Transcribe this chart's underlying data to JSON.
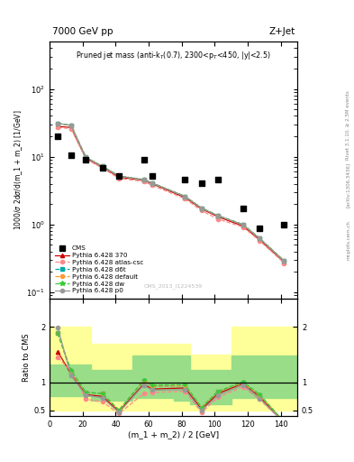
{
  "header_left": "7000 GeV pp",
  "header_right": "Z+Jet",
  "plot_title": "Pruned jet mass (anti-k_{T}(0.7), 2300<p_{T}<450, |y|<2.5)",
  "xlabel": "(m_1 + m_2) / 2 [GeV]",
  "ylabel_main": "1000/σ 2dσ/d(m_1 + m_2) [1/GeV]",
  "ylabel_ratio": "Ratio to CMS",
  "watermark": "CMS_2013_I1224539",
  "rivet_label": "Rivet 3.1.10, ≥ 2.5M events",
  "arxiv_label": "[arXiv:1306.3436]",
  "mcplots_label": "mcplots.cern.ch",
  "cms_x": [
    5,
    13,
    22,
    32,
    42,
    57,
    62,
    82,
    92,
    102,
    117,
    127,
    142
  ],
  "cms_y": [
    20,
    10.5,
    9.0,
    6.8,
    5.2,
    9.0,
    5.2,
    4.6,
    4.1,
    4.6,
    1.75,
    0.88,
    1.0
  ],
  "x_bins": [
    5,
    13,
    22,
    32,
    42,
    57,
    62,
    82,
    92,
    102,
    117,
    127,
    142
  ],
  "py370_y": [
    28,
    27,
    9.5,
    7.0,
    5.0,
    4.5,
    4.0,
    2.5,
    1.7,
    1.3,
    0.95,
    0.6,
    0.28
  ],
  "pyatl_y": [
    27,
    26,
    9.2,
    6.8,
    4.8,
    4.3,
    3.8,
    2.4,
    1.6,
    1.2,
    0.92,
    0.58,
    0.27
  ],
  "pyd6t_y": [
    31,
    29,
    9.8,
    7.2,
    5.2,
    4.6,
    4.1,
    2.6,
    1.75,
    1.35,
    1.0,
    0.63,
    0.29
  ],
  "pydef_y": [
    31,
    29,
    9.8,
    7.2,
    5.2,
    4.6,
    4.1,
    2.6,
    1.75,
    1.35,
    1.0,
    0.63,
    0.29
  ],
  "pydw_y": [
    31,
    29,
    9.8,
    7.2,
    5.2,
    4.6,
    4.1,
    2.6,
    1.75,
    1.35,
    1.0,
    0.63,
    0.29
  ],
  "pyp0_y": [
    31,
    29,
    9.8,
    7.2,
    5.2,
    4.6,
    4.1,
    2.6,
    1.75,
    1.35,
    1.0,
    0.63,
    0.29
  ],
  "ratio_x": [
    5,
    13,
    22,
    32,
    42,
    57,
    62,
    82,
    92,
    102,
    117,
    127,
    142
  ],
  "ratio_370": [
    1.55,
    1.15,
    0.78,
    0.75,
    0.48,
    0.97,
    0.88,
    0.9,
    0.52,
    0.8,
    0.98,
    0.75,
    0.27
  ],
  "ratio_atl": [
    1.45,
    1.2,
    0.7,
    0.65,
    0.44,
    0.8,
    0.82,
    0.84,
    0.46,
    0.73,
    0.92,
    0.7,
    0.27
  ],
  "ratio_d6t": [
    1.88,
    1.18,
    0.82,
    0.8,
    0.5,
    1.03,
    0.93,
    0.94,
    0.55,
    0.84,
    0.99,
    0.77,
    0.29
  ],
  "ratio_def": [
    1.88,
    1.18,
    0.82,
    0.8,
    0.5,
    1.03,
    0.93,
    0.94,
    0.55,
    0.84,
    0.99,
    0.77,
    0.29
  ],
  "ratio_dw": [
    1.88,
    1.22,
    0.82,
    0.8,
    0.5,
    1.04,
    0.95,
    0.96,
    0.55,
    0.84,
    1.01,
    0.79,
    0.29
  ],
  "ratio_p0": [
    1.98,
    1.12,
    0.77,
    0.72,
    0.46,
    0.95,
    0.86,
    0.87,
    0.49,
    0.77,
    0.95,
    0.71,
    0.28
  ],
  "band_x": [
    0,
    15,
    25,
    35,
    50,
    60,
    75,
    85,
    95,
    110,
    130,
    150
  ],
  "band_green_lo": [
    0.75,
    0.75,
    0.68,
    0.68,
    0.72,
    0.72,
    0.68,
    0.6,
    0.6,
    0.72,
    0.72,
    0.72
  ],
  "band_green_hi": [
    1.32,
    1.32,
    1.22,
    1.22,
    1.48,
    1.48,
    1.48,
    1.22,
    1.22,
    1.48,
    1.48,
    1.48
  ],
  "band_yellow_lo": [
    0.5,
    0.5,
    0.5,
    0.5,
    0.5,
    0.5,
    0.5,
    0.5,
    0.5,
    0.5,
    0.5,
    0.5
  ],
  "band_yellow_hi": [
    2.0,
    2.0,
    1.7,
    1.7,
    1.7,
    1.7,
    1.7,
    1.5,
    1.5,
    2.0,
    2.0,
    2.0
  ],
  "colors": {
    "py370": "#cc0000",
    "pyatl": "#ff8888",
    "pyd6t": "#00aaaa",
    "pydef": "#ff9933",
    "pydw": "#33cc33",
    "pyp0": "#999999"
  },
  "xlim": [
    0,
    150
  ],
  "ylim_main": [
    0.08,
    500
  ],
  "ylim_ratio": [
    0.4,
    2.5
  ],
  "yticks_ratio_left": [
    0.5,
    1.0,
    2.0
  ],
  "yticks_ratio_right": [
    0.5,
    1.0,
    2.0
  ]
}
